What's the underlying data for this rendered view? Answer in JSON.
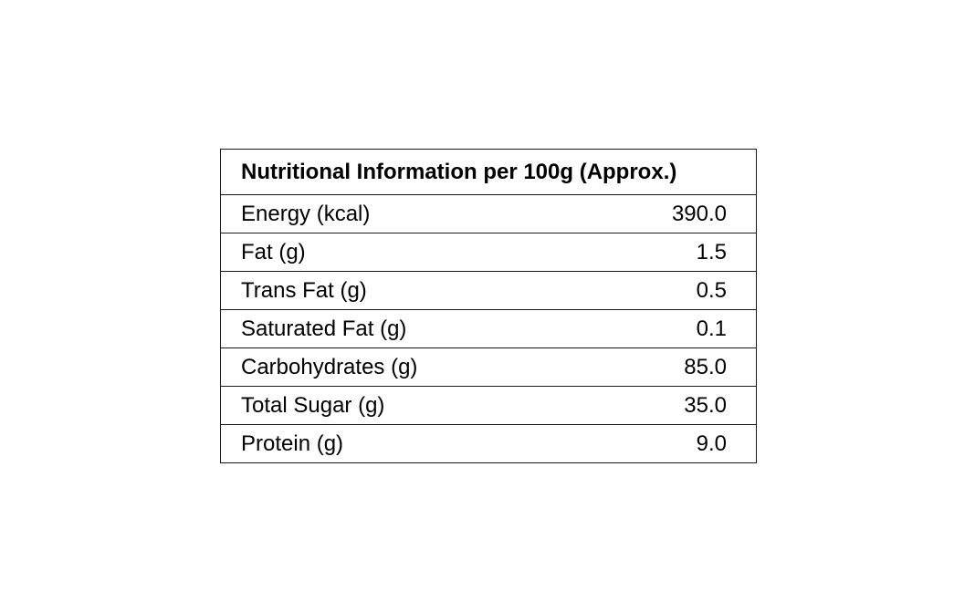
{
  "table": {
    "title": "Nutritional Information per 100g (Approx.)",
    "rows": [
      {
        "label": "Energy (kcal)",
        "value": "390.0"
      },
      {
        "label": "Fat (g)",
        "value": "1.5"
      },
      {
        "label": "Trans Fat (g)",
        "value": "0.5"
      },
      {
        "label": "Saturated Fat (g)",
        "value": "0.1"
      },
      {
        "label": "Carbohydrates (g)",
        "value": "85.0"
      },
      {
        "label": "Total Sugar (g)",
        "value": "35.0"
      },
      {
        "label": "Protein (g)",
        "value": "9.0"
      }
    ]
  }
}
